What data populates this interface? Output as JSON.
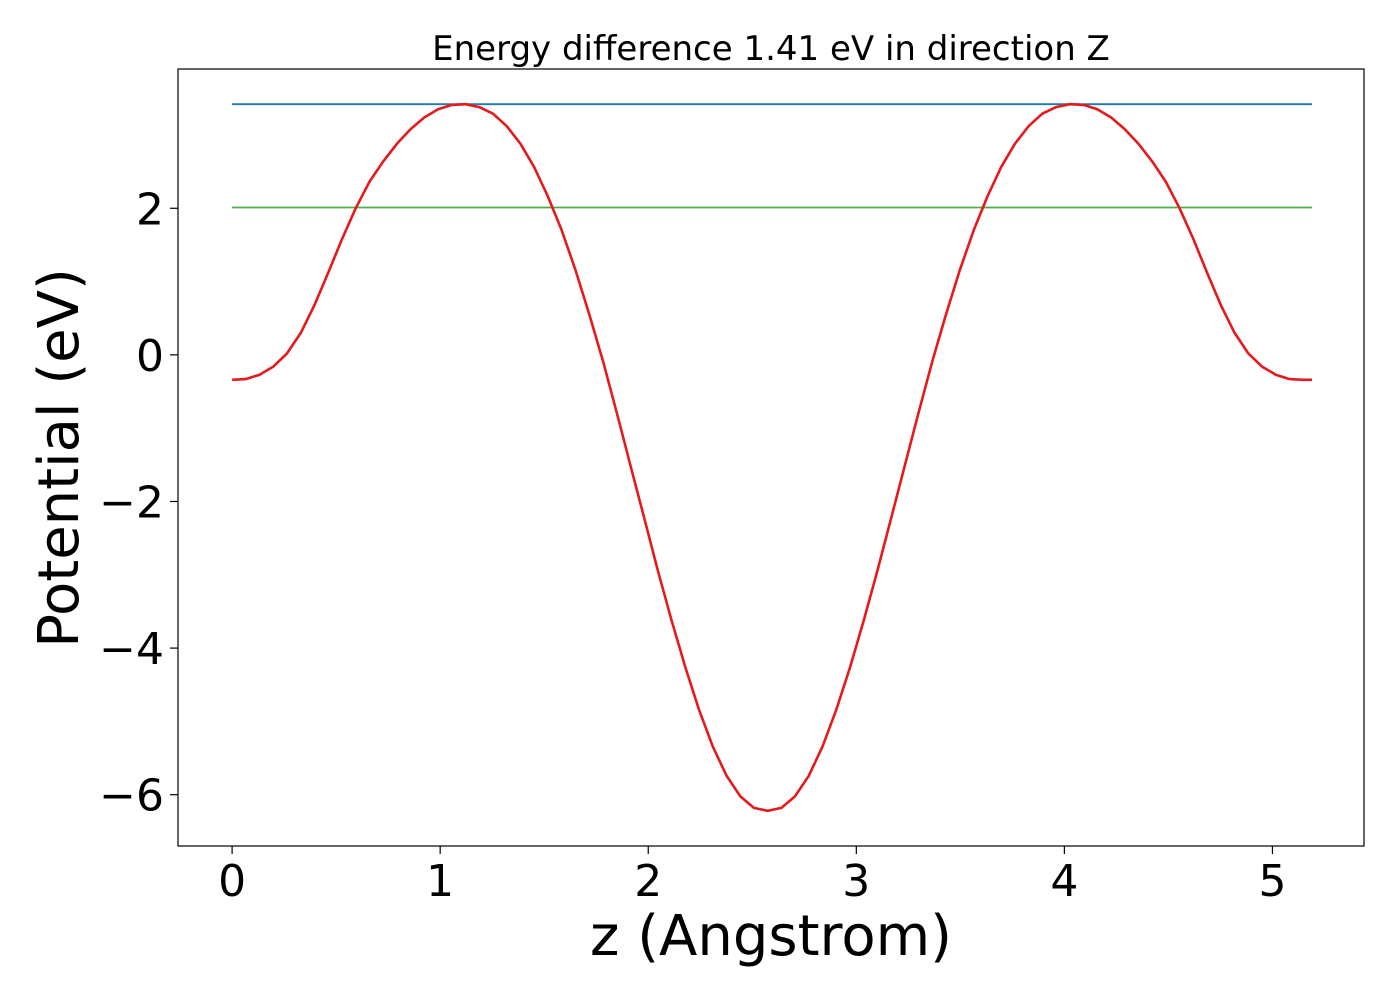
{
  "chart_data": {
    "type": "line",
    "title": "Energy difference 1.41 eV in direction Z",
    "xlabel": "z (Angstrom)",
    "ylabel": "Potential (eV)",
    "xlim": [
      -0.26,
      5.44
    ],
    "ylim": [
      -6.7,
      3.9
    ],
    "xticks": [
      0,
      1,
      2,
      3,
      4,
      5
    ],
    "xtick_labels": [
      "0",
      "1",
      "2",
      "3",
      "4",
      "5"
    ],
    "yticks": [
      2,
      0,
      -2,
      -4,
      -6
    ],
    "ytick_labels": [
      "2",
      "0",
      "−2",
      "−4",
      "−6"
    ],
    "grid": false,
    "legend": "none",
    "series": [
      {
        "color": "#e41a1c",
        "x": [
          0.0,
          0.066,
          0.132,
          0.198,
          0.264,
          0.33,
          0.396,
          0.462,
          0.528,
          0.594,
          0.66,
          0.726,
          0.792,
          0.858,
          0.924,
          0.99,
          1.056,
          1.122,
          1.188,
          1.254,
          1.32,
          1.386,
          1.452,
          1.518,
          1.584,
          1.65,
          1.716,
          1.782,
          1.848,
          1.914,
          1.98,
          2.046,
          2.112,
          2.178,
          2.244,
          2.31,
          2.376,
          2.442,
          2.508,
          2.574,
          2.64,
          2.706,
          2.772,
          2.838,
          2.904,
          2.97,
          3.036,
          3.102,
          3.168,
          3.234,
          3.3,
          3.366,
          3.432,
          3.498,
          3.564,
          3.63,
          3.696,
          3.762,
          3.828,
          3.894,
          3.96,
          4.026,
          4.092,
          4.158,
          4.224,
          4.29,
          4.356,
          4.422,
          4.488,
          4.554,
          4.62,
          4.686,
          4.752,
          4.818,
          4.884,
          4.95,
          5.016,
          5.082,
          5.148,
          5.19
        ],
        "y": [
          -0.34,
          -0.33,
          -0.27,
          -0.16,
          0.02,
          0.3,
          0.68,
          1.12,
          1.58,
          2.0,
          2.36,
          2.64,
          2.88,
          3.08,
          3.24,
          3.35,
          3.41,
          3.42,
          3.38,
          3.29,
          3.12,
          2.88,
          2.56,
          2.16,
          1.7,
          1.16,
          0.56,
          -0.08,
          -0.78,
          -1.5,
          -2.22,
          -2.94,
          -3.62,
          -4.26,
          -4.84,
          -5.34,
          -5.74,
          -6.02,
          -6.18,
          -6.22,
          -6.18,
          -6.02,
          -5.74,
          -5.34,
          -4.84,
          -4.26,
          -3.62,
          -2.94,
          -2.22,
          -1.5,
          -0.78,
          -0.08,
          0.56,
          1.16,
          1.7,
          2.16,
          2.56,
          2.88,
          3.12,
          3.29,
          3.38,
          3.42,
          3.41,
          3.35,
          3.24,
          3.08,
          2.88,
          2.64,
          2.36,
          2.0,
          1.58,
          1.12,
          0.68,
          0.3,
          0.02,
          -0.16,
          -0.27,
          -0.33,
          -0.34,
          -0.34
        ]
      },
      {
        "color": "#1f77b4",
        "x": [
          0.0,
          5.19
        ],
        "y": [
          3.42,
          3.42
        ]
      },
      {
        "color": "#4daf4a",
        "x": [
          0.0,
          5.19
        ],
        "y": [
          2.01,
          2.01
        ]
      }
    ]
  }
}
